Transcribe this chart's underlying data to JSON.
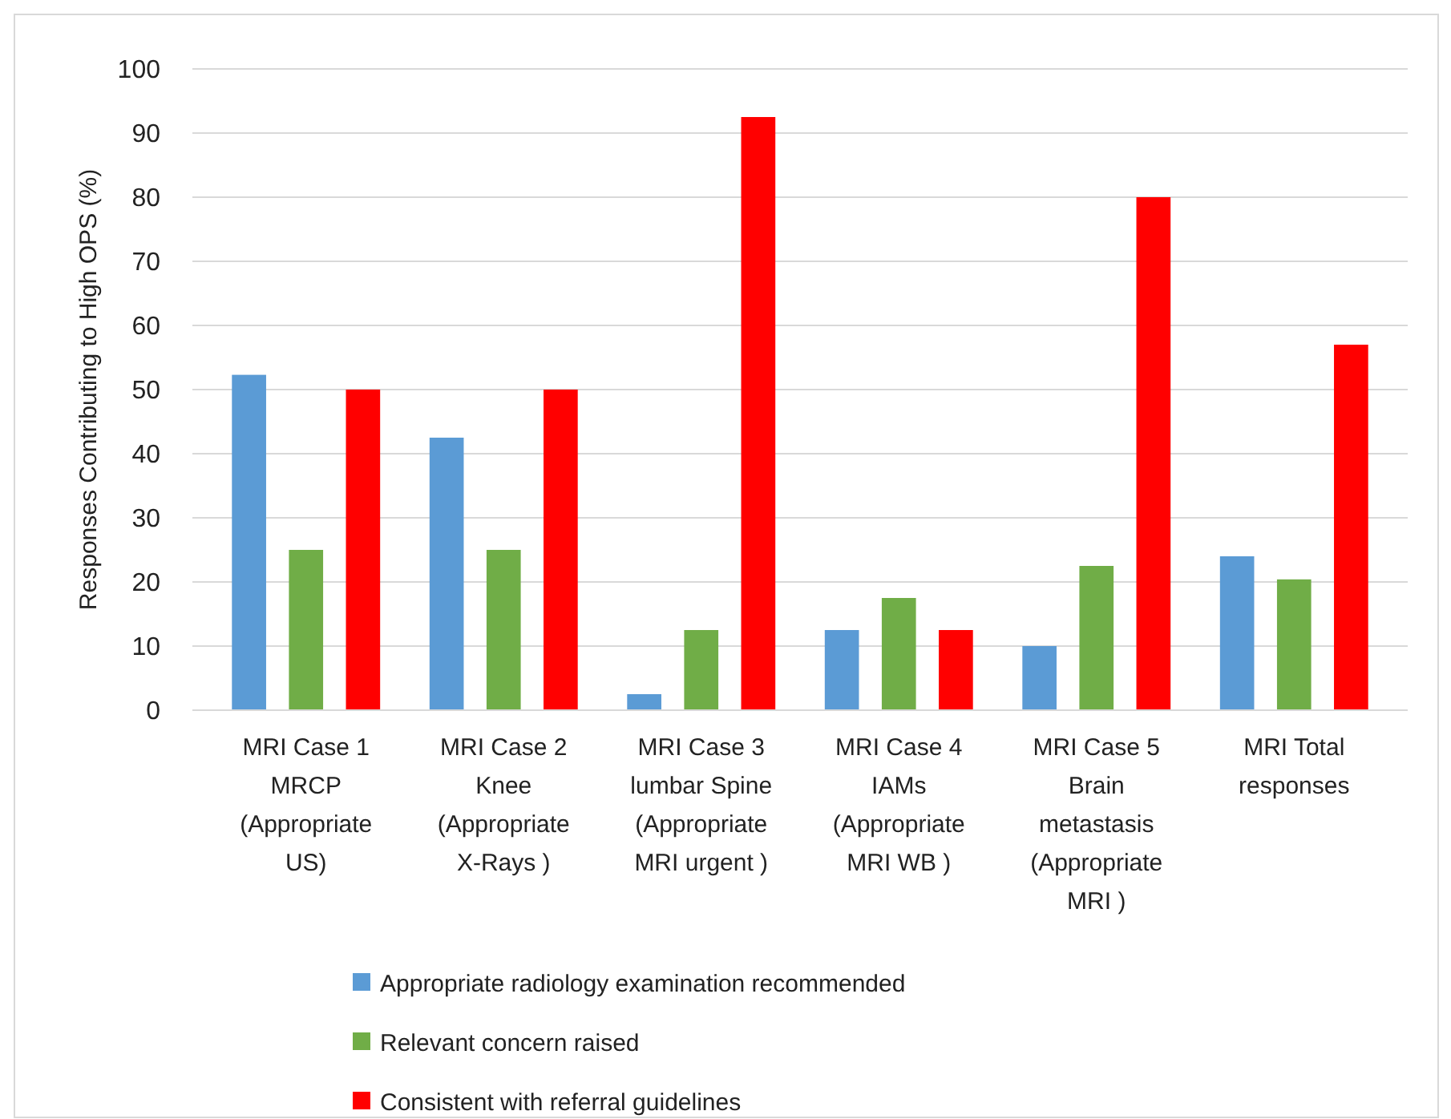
{
  "chart_data": {
    "type": "bar",
    "ylabel": "Responses Contributing to High OPS  (%)",
    "categories": [
      "MRI  Case 1\nMRCP\n(Appropriate\nUS)",
      "MRI Case 2\nKnee\n(Appropriate\nX-Rays )",
      "MRI Case 3\nlumbar Spine\n(Appropriate\nMRI urgent )",
      "MRI Case 4\nIAMs\n(Appropriate\nMRI WB )",
      "MRI Case 5\nBrain\nmetastasis\n(Appropriate\nMRI )",
      "MRI Total\nresponses"
    ],
    "series": [
      {
        "name": "Appropriate radiology examination recommended",
        "color": "#5b9bd5",
        "values": [
          52.3,
          42.5,
          2.5,
          12.5,
          10,
          24
        ]
      },
      {
        "name": "Relevant concern raised",
        "color": "#70ad47",
        "values": [
          25,
          25,
          12.5,
          17.5,
          22.5,
          20.4
        ]
      },
      {
        "name": "Consistent with referral guidelines",
        "color": "#ff0000",
        "values": [
          50,
          50,
          92.5,
          12.5,
          80,
          57
        ]
      }
    ],
    "ylim": [
      0,
      100
    ],
    "yticks": [
      0,
      10,
      20,
      30,
      40,
      50,
      60,
      70,
      80,
      90,
      100
    ],
    "grid": "y",
    "legend": "bottom"
  }
}
